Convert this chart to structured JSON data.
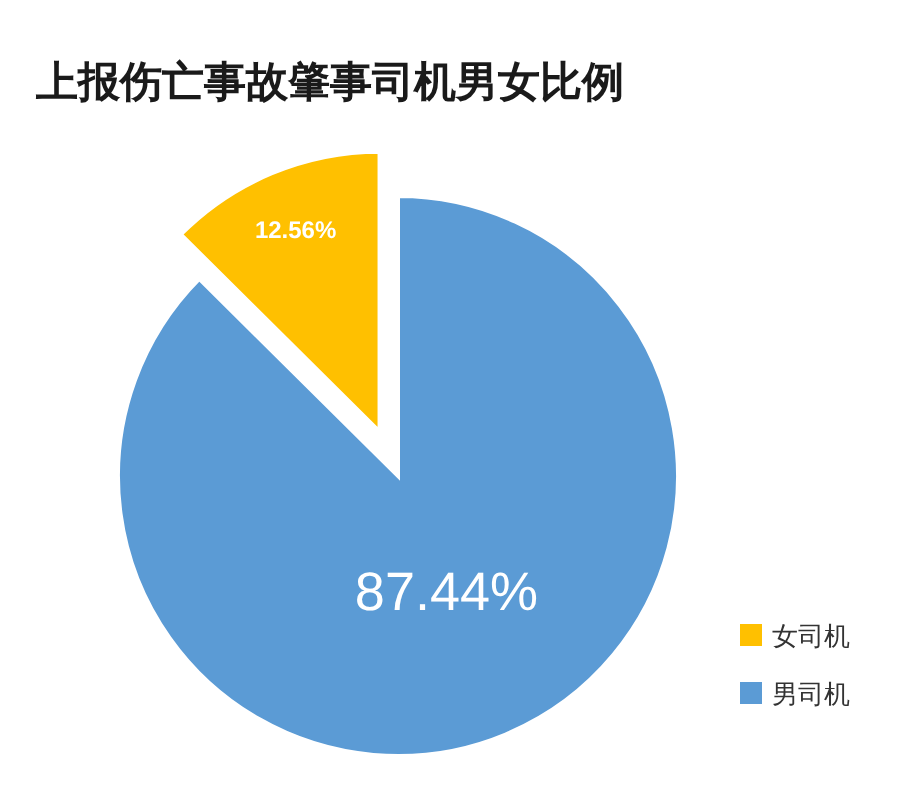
{
  "chart_data": {
    "type": "pie",
    "title": "上报伤亡事故肇事司机男女比例",
    "categories": [
      "女司机",
      "男司机"
    ],
    "values": [
      12.56,
      87.44
    ],
    "colors": [
      "#ffc000",
      "#5b9bd5"
    ],
    "value_labels": [
      "12.56%",
      "87.44%"
    ],
    "legend": "bottom right"
  }
}
